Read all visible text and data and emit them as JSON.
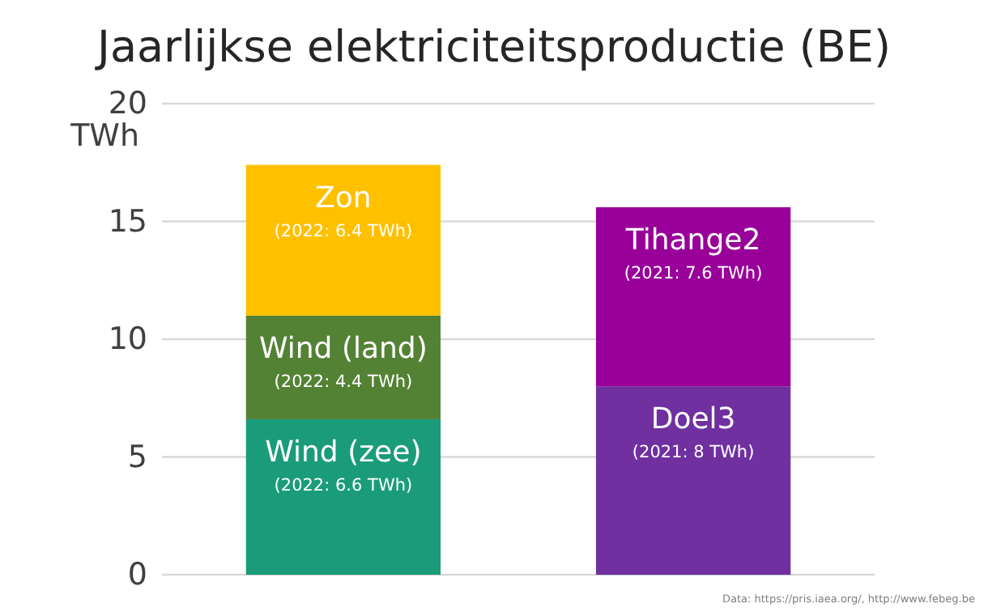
{
  "chart_data": {
    "type": "bar",
    "title": "Jaarlijkse elektriciteitsproductie (BE)",
    "ylabel": "TWh",
    "stacked": true,
    "categories": [
      null,
      null
    ],
    "series": [
      {
        "name": "Wind (zee)",
        "color": "#1a9c7a",
        "values": [
          6.6,
          null
        ],
        "value_labels": [
          "(2022: 6.6 TWh)",
          null
        ]
      },
      {
        "name": "Wind (land)",
        "color": "#548235",
        "values": [
          4.4,
          null
        ],
        "value_labels": [
          "(2022: 4.4 TWh)",
          null
        ]
      },
      {
        "name": "Zon",
        "color": "#ffc000",
        "values": [
          6.4,
          null
        ],
        "value_labels": [
          "(2022: 6.4 TWh)",
          null
        ]
      },
      {
        "name": "Doel3",
        "color": "#7030a0",
        "values": [
          null,
          8
        ],
        "value_labels": [
          null,
          "(2021: 8 TWh)"
        ]
      },
      {
        "name": "Tihange2",
        "color": "#990099",
        "values": [
          null,
          7.6
        ],
        "value_labels": [
          null,
          "(2021: 7.6 TWh)"
        ]
      }
    ],
    "ylim": [
      0,
      20
    ],
    "yticks": [
      0,
      5,
      10,
      15,
      20
    ],
    "grid": "y",
    "legend": false,
    "annotations": [
      "Data: https://pris.iaea.org/, http://www.febeg.be"
    ]
  }
}
